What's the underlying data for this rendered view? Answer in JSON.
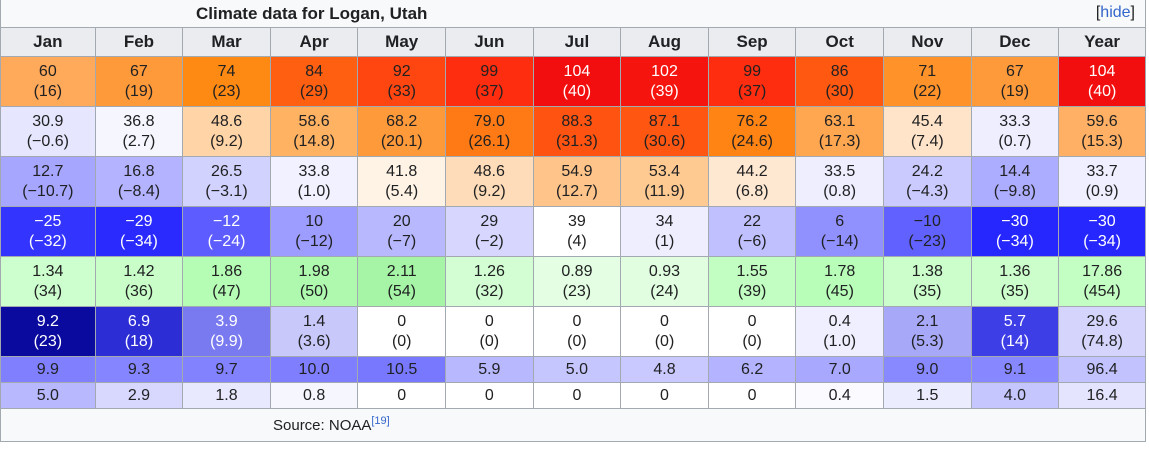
{
  "table": {
    "caption": "Climate data for Logan, Utah",
    "hide_label": "hide",
    "headers": [
      "Jan",
      "Feb",
      "Mar",
      "Apr",
      "May",
      "Jun",
      "Jul",
      "Aug",
      "Sep",
      "Oct",
      "Nov",
      "Dec",
      "Year"
    ],
    "rows": [
      {
        "name": "record-high",
        "cells": [
          {
            "a": "60",
            "b": "(16)",
            "bg": "#ffa95a",
            "fg": "#202122"
          },
          {
            "a": "67",
            "b": "(19)",
            "bg": "#ff9a3a",
            "fg": "#202122"
          },
          {
            "a": "74",
            "b": "(23)",
            "bg": "#ff8a13",
            "fg": "#202122"
          },
          {
            "a": "84",
            "b": "(29)",
            "bg": "#ff5f11",
            "fg": "#202122"
          },
          {
            "a": "92",
            "b": "(33)",
            "bg": "#ff4611",
            "fg": "#202122"
          },
          {
            "a": "99",
            "b": "(37)",
            "bg": "#ff2d0f",
            "fg": "#202122"
          },
          {
            "a": "104",
            "b": "(40)",
            "bg": "#f20e0e",
            "fg": "#ffffff"
          },
          {
            "a": "102",
            "b": "(39)",
            "bg": "#f5140e",
            "fg": "#ffffff"
          },
          {
            "a": "99",
            "b": "(37)",
            "bg": "#ff2d0f",
            "fg": "#202122"
          },
          {
            "a": "86",
            "b": "(30)",
            "bg": "#ff5811",
            "fg": "#202122"
          },
          {
            "a": "71",
            "b": "(22)",
            "bg": "#ff9228",
            "fg": "#202122"
          },
          {
            "a": "67",
            "b": "(19)",
            "bg": "#ff9a3a",
            "fg": "#202122"
          },
          {
            "a": "104",
            "b": "(40)",
            "bg": "#f20e0e",
            "fg": "#ffffff"
          }
        ]
      },
      {
        "name": "mean-max",
        "cells": [
          {
            "a": "30.9",
            "b": "(−0.6)",
            "bg": "#e6e6ff",
            "fg": "#202122"
          },
          {
            "a": "36.8",
            "b": "(2.7)",
            "bg": "#f6f6ff",
            "fg": "#202122"
          },
          {
            "a": "48.6",
            "b": "(9.2)",
            "bg": "#ffd4a7",
            "fg": "#202122"
          },
          {
            "a": "58.6",
            "b": "(14.8)",
            "bg": "#ffb262",
            "fg": "#202122"
          },
          {
            "a": "68.2",
            "b": "(20.1)",
            "bg": "#ff9a3a",
            "fg": "#202122"
          },
          {
            "a": "79.0",
            "b": "(26.1)",
            "bg": "#ff7a14",
            "fg": "#202122"
          },
          {
            "a": "88.3",
            "b": "(31.3)",
            "bg": "#ff5411",
            "fg": "#202122"
          },
          {
            "a": "87.1",
            "b": "(30.6)",
            "bg": "#ff5611",
            "fg": "#202122"
          },
          {
            "a": "76.2",
            "b": "(24.6)",
            "bg": "#ff8414",
            "fg": "#202122"
          },
          {
            "a": "63.1",
            "b": "(17.3)",
            "bg": "#ffa650",
            "fg": "#202122"
          },
          {
            "a": "45.4",
            "b": "(7.4)",
            "bg": "#ffe4c9",
            "fg": "#202122"
          },
          {
            "a": "33.3",
            "b": "(0.7)",
            "bg": "#eeeeff",
            "fg": "#202122"
          },
          {
            "a": "59.6",
            "b": "(15.3)",
            "bg": "#ffb064",
            "fg": "#202122"
          }
        ]
      },
      {
        "name": "mean-min",
        "cells": [
          {
            "a": "12.7",
            "b": "(−10.7)",
            "bg": "#a6a6ff",
            "fg": "#202122"
          },
          {
            "a": "16.8",
            "b": "(−8.4)",
            "bg": "#b3b3ff",
            "fg": "#202122"
          },
          {
            "a": "26.5",
            "b": "(−3.1)",
            "bg": "#d2d2ff",
            "fg": "#202122"
          },
          {
            "a": "33.8",
            "b": "(1.0)",
            "bg": "#f1f1ff",
            "fg": "#202122"
          },
          {
            "a": "41.8",
            "b": "(5.4)",
            "bg": "#fff3e6",
            "fg": "#202122"
          },
          {
            "a": "48.6",
            "b": "(9.2)",
            "bg": "#ffdcb9",
            "fg": "#202122"
          },
          {
            "a": "54.9",
            "b": "(12.7)",
            "bg": "#ffc48a",
            "fg": "#202122"
          },
          {
            "a": "53.4",
            "b": "(11.9)",
            "bg": "#ffc992",
            "fg": "#202122"
          },
          {
            "a": "44.2",
            "b": "(6.8)",
            "bg": "#ffe8d2",
            "fg": "#202122"
          },
          {
            "a": "33.5",
            "b": "(0.8)",
            "bg": "#eeeeff",
            "fg": "#202122"
          },
          {
            "a": "24.2",
            "b": "(−4.3)",
            "bg": "#cacaff",
            "fg": "#202122"
          },
          {
            "a": "14.4",
            "b": "(−9.8)",
            "bg": "#adadff",
            "fg": "#202122"
          },
          {
            "a": "33.7",
            "b": "(0.9)",
            "bg": "#efefff",
            "fg": "#202122"
          }
        ]
      },
      {
        "name": "record-low",
        "cells": [
          {
            "a": "−25",
            "b": "(−32)",
            "bg": "#3434ff",
            "fg": "#ffffff"
          },
          {
            "a": "−29",
            "b": "(−34)",
            "bg": "#2a2aff",
            "fg": "#ffffff"
          },
          {
            "a": "−12",
            "b": "(−24)",
            "bg": "#5d5dff",
            "fg": "#ffffff"
          },
          {
            "a": "10",
            "b": "(−12)",
            "bg": "#9d9dff",
            "fg": "#202122"
          },
          {
            "a": "20",
            "b": "(−7)",
            "bg": "#b8b8ff",
            "fg": "#202122"
          },
          {
            "a": "29",
            "b": "(−2)",
            "bg": "#d6d6ff",
            "fg": "#202122"
          },
          {
            "a": "39",
            "b": "(4)",
            "bg": "#ffffff",
            "fg": "#202122"
          },
          {
            "a": "34",
            "b": "(1)",
            "bg": "#eeeeff",
            "fg": "#202122"
          },
          {
            "a": "22",
            "b": "(−6)",
            "bg": "#c0c0ff",
            "fg": "#202122"
          },
          {
            "a": "6",
            "b": "(−14)",
            "bg": "#9090ff",
            "fg": "#202122"
          },
          {
            "a": "−10",
            "b": "(−23)",
            "bg": "#6161ff",
            "fg": "#202122"
          },
          {
            "a": "−30",
            "b": "(−34)",
            "bg": "#2626ff",
            "fg": "#ffffff"
          },
          {
            "a": "−30",
            "b": "(−34)",
            "bg": "#2626ff",
            "fg": "#ffffff"
          }
        ]
      },
      {
        "name": "precipitation",
        "cells": [
          {
            "a": "1.34",
            "b": "(34)",
            "bg": "#cdfecd",
            "fg": "#202122"
          },
          {
            "a": "1.42",
            "b": "(36)",
            "bg": "#c9fec9",
            "fg": "#202122"
          },
          {
            "a": "1.86",
            "b": "(47)",
            "bg": "#b5fdb5",
            "fg": "#202122"
          },
          {
            "a": "1.98",
            "b": "(50)",
            "bg": "#aef9ae",
            "fg": "#202122"
          },
          {
            "a": "2.11",
            "b": "(54)",
            "bg": "#a6f5a6",
            "fg": "#202122"
          },
          {
            "a": "1.26",
            "b": "(32)",
            "bg": "#d3fed3",
            "fg": "#202122"
          },
          {
            "a": "0.89",
            "b": "(23)",
            "bg": "#e3fee3",
            "fg": "#202122"
          },
          {
            "a": "0.93",
            "b": "(24)",
            "bg": "#e1fee1",
            "fg": "#202122"
          },
          {
            "a": "1.55",
            "b": "(39)",
            "bg": "#c2fec2",
            "fg": "#202122"
          },
          {
            "a": "1.78",
            "b": "(45)",
            "bg": "#b8fdb8",
            "fg": "#202122"
          },
          {
            "a": "1.38",
            "b": "(35)",
            "bg": "#cbfecb",
            "fg": "#202122"
          },
          {
            "a": "1.36",
            "b": "(35)",
            "bg": "#ccfecc",
            "fg": "#202122"
          },
          {
            "a": "17.86",
            "b": "(454)",
            "bg": "#c3fec3",
            "fg": "#202122"
          }
        ]
      },
      {
        "name": "snowfall",
        "cells": [
          {
            "a": "9.2",
            "b": "(23)",
            "bg": "#0a0a9e",
            "fg": "#ffffff"
          },
          {
            "a": "6.9",
            "b": "(18)",
            "bg": "#2d2dd6",
            "fg": "#ffffff"
          },
          {
            "a": "3.9",
            "b": "(9.9)",
            "bg": "#7a7af0",
            "fg": "#ffffff"
          },
          {
            "a": "1.4",
            "b": "(3.6)",
            "bg": "#c8c8fb",
            "fg": "#202122"
          },
          {
            "a": "0",
            "b": "(0)",
            "bg": "#ffffff",
            "fg": "#202122"
          },
          {
            "a": "0",
            "b": "(0)",
            "bg": "#ffffff",
            "fg": "#202122"
          },
          {
            "a": "0",
            "b": "(0)",
            "bg": "#ffffff",
            "fg": "#202122"
          },
          {
            "a": "0",
            "b": "(0)",
            "bg": "#ffffff",
            "fg": "#202122"
          },
          {
            "a": "0",
            "b": "(0)",
            "bg": "#ffffff",
            "fg": "#202122"
          },
          {
            "a": "0.4",
            "b": "(1.0)",
            "bg": "#efefff",
            "fg": "#202122"
          },
          {
            "a": "2.1",
            "b": "(5.3)",
            "bg": "#a8a8f8",
            "fg": "#202122"
          },
          {
            "a": "5.7",
            "b": "(14)",
            "bg": "#3e3ee6",
            "fg": "#ffffff"
          },
          {
            "a": "29.6",
            "b": "(74.8)",
            "bg": "#d4d4fc",
            "fg": "#202122"
          }
        ]
      },
      {
        "name": "precipitation-days",
        "cells": [
          {
            "a": "9.9",
            "bg": "#8080ff",
            "fg": "#202122"
          },
          {
            "a": "9.3",
            "bg": "#8585ff",
            "fg": "#202122"
          },
          {
            "a": "9.7",
            "bg": "#8282ff",
            "fg": "#202122"
          },
          {
            "a": "10.0",
            "bg": "#7e7eff",
            "fg": "#202122"
          },
          {
            "a": "10.5",
            "bg": "#7878ff",
            "fg": "#202122"
          },
          {
            "a": "5.9",
            "bg": "#b8b8ff",
            "fg": "#202122"
          },
          {
            "a": "5.0",
            "bg": "#c6c6ff",
            "fg": "#202122"
          },
          {
            "a": "4.8",
            "bg": "#c9c9ff",
            "fg": "#202122"
          },
          {
            "a": "6.2",
            "bg": "#b3b3ff",
            "fg": "#202122"
          },
          {
            "a": "7.0",
            "bg": "#a8a8ff",
            "fg": "#202122"
          },
          {
            "a": "9.0",
            "bg": "#8888ff",
            "fg": "#202122"
          },
          {
            "a": "9.1",
            "bg": "#8787ff",
            "fg": "#202122"
          },
          {
            "a": "96.4",
            "bg": "#c2c2ff",
            "fg": "#202122"
          }
        ]
      },
      {
        "name": "snowy-days",
        "cells": [
          {
            "a": "5.0",
            "bg": "#b8b8ff",
            "fg": "#202122"
          },
          {
            "a": "2.9",
            "bg": "#d8d8ff",
            "fg": "#202122"
          },
          {
            "a": "1.8",
            "bg": "#e8e8ff",
            "fg": "#202122"
          },
          {
            "a": "0.8",
            "bg": "#f6f6ff",
            "fg": "#202122"
          },
          {
            "a": "0",
            "bg": "#ffffff",
            "fg": "#202122"
          },
          {
            "a": "0",
            "bg": "#ffffff",
            "fg": "#202122"
          },
          {
            "a": "0",
            "bg": "#ffffff",
            "fg": "#202122"
          },
          {
            "a": "0",
            "bg": "#ffffff",
            "fg": "#202122"
          },
          {
            "a": "0",
            "bg": "#ffffff",
            "fg": "#202122"
          },
          {
            "a": "0.4",
            "bg": "#fafaff",
            "fg": "#202122"
          },
          {
            "a": "1.5",
            "bg": "#ececff",
            "fg": "#202122"
          },
          {
            "a": "4.0",
            "bg": "#c6c6ff",
            "fg": "#202122"
          },
          {
            "a": "16.4",
            "bg": "#e4e4ff",
            "fg": "#202122"
          }
        ]
      }
    ],
    "source_label": "Source: NOAA",
    "source_ref": "[19]"
  }
}
